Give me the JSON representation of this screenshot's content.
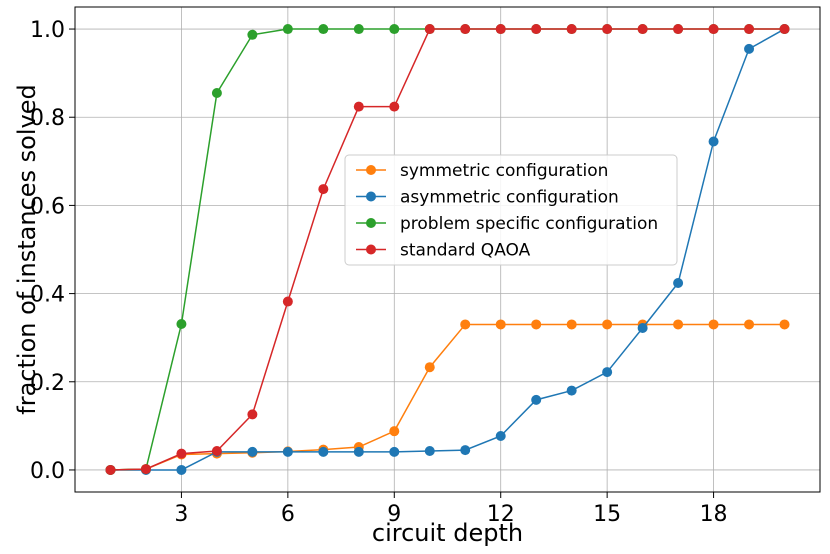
{
  "chart_data": {
    "type": "line",
    "title": "",
    "xlabel": "circuit depth",
    "ylabel": "fraction of instances solved",
    "xlim": [
      0,
      21
    ],
    "ylim": [
      -0.05,
      1.05
    ],
    "xticks": [
      3,
      6,
      9,
      12,
      15,
      18
    ],
    "yticks": [
      0.0,
      0.2,
      0.4,
      0.6,
      0.8,
      1.0
    ],
    "ytick_labels": [
      "0.0",
      "0.2",
      "0.4",
      "0.6",
      "0.8",
      "1.0"
    ],
    "grid": true,
    "legend_position": "center-right",
    "x": [
      1,
      2,
      3,
      4,
      5,
      6,
      7,
      8,
      9,
      10,
      11,
      12,
      13,
      14,
      15,
      16,
      17,
      18,
      19,
      20
    ],
    "series": [
      {
        "name": "symmetric configuration",
        "color": "#ff7f0e",
        "values": [
          0.0,
          0.002,
          0.035,
          0.037,
          0.039,
          0.042,
          0.046,
          0.052,
          0.088,
          0.233,
          0.33,
          0.33,
          0.33,
          0.33,
          0.33,
          0.33,
          0.33,
          0.33,
          0.33,
          0.33
        ]
      },
      {
        "name": "asymmetric configuration",
        "color": "#1f77b4",
        "values": [
          0.0,
          0.0,
          0.0,
          0.041,
          0.041,
          0.041,
          0.041,
          0.041,
          0.041,
          0.043,
          0.045,
          0.077,
          0.159,
          0.18,
          0.222,
          0.322,
          0.424,
          0.745,
          0.955,
          1.0
        ]
      },
      {
        "name": "problem specific configuration",
        "color": "#2ca02c",
        "values": [
          0.0,
          0.002,
          0.331,
          0.855,
          0.987,
          1.0,
          1.0,
          1.0,
          1.0,
          1.0,
          1.0,
          1.0,
          1.0,
          1.0,
          1.0,
          1.0,
          1.0,
          1.0,
          1.0,
          1.0
        ]
      },
      {
        "name": "standard QAOA",
        "color": "#d62728",
        "values": [
          0.0,
          0.002,
          0.037,
          0.043,
          0.126,
          0.382,
          0.637,
          0.824,
          0.824,
          1.0,
          1.0,
          1.0,
          1.0,
          1.0,
          1.0,
          1.0,
          1.0,
          1.0,
          1.0,
          1.0
        ]
      }
    ]
  }
}
